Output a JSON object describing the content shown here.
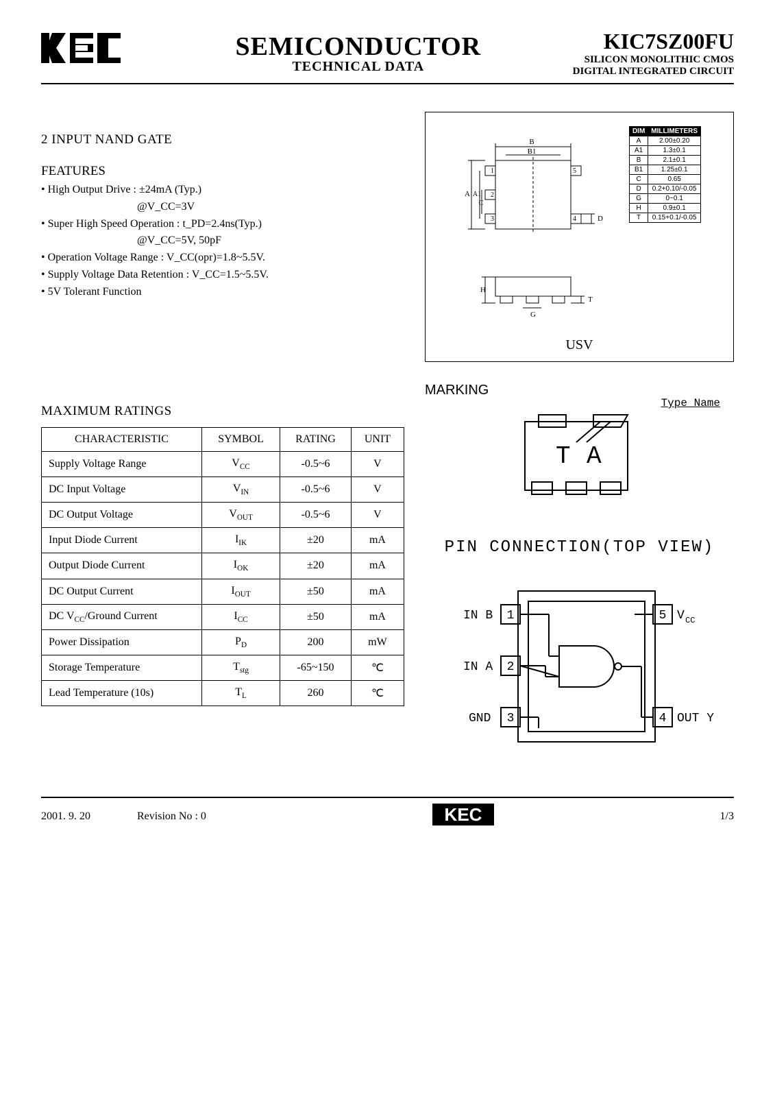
{
  "header": {
    "logo_text": "KEC",
    "mid_main": "SEMICONDUCTOR",
    "mid_sub": "TECHNICAL DATA",
    "part_number": "KIC7SZ00FU",
    "line2": "SILICON MONOLITHIC CMOS",
    "line3": "DIGITAL INTEGRATED CIRCUIT"
  },
  "product_title": "2 INPUT NAND GATE",
  "features_title": "FEATURES",
  "features": [
    "• High Output Drive : ±24mA (Typ.)",
    "@V_CC=3V",
    "• Super High Speed Operation : t_PD=2.4ns(Typ.)",
    "@V_CC=5V, 50pF",
    "• Operation Voltage Range : V_CC(opr)=1.8~5.5V.",
    "• Supply Voltage Data Retention : V_CC=1.5~5.5V.",
    "• 5V Tolerant Function"
  ],
  "max_ratings_title": "MAXIMUM RATINGS",
  "ratings_table": {
    "columns": [
      "CHARACTERISTIC",
      "SYMBOL",
      "RATING",
      "UNIT"
    ],
    "rows": [
      [
        "Supply Voltage Range",
        "V_CC",
        "-0.5~6",
        "V"
      ],
      [
        "DC Input Voltage",
        "V_IN",
        "-0.5~6",
        "V"
      ],
      [
        "DC Output Voltage",
        "V_OUT",
        "-0.5~6",
        "V"
      ],
      [
        "Input Diode Current",
        "I_IK",
        "±20",
        "mA"
      ],
      [
        "Output Diode Current",
        "I_OK",
        "±20",
        "mA"
      ],
      [
        "DC Output Current",
        "I_OUT",
        "±50",
        "mA"
      ],
      [
        "DC V_CC/Ground Current",
        "I_CC",
        "±50",
        "mA"
      ],
      [
        "Power Dissipation",
        "P_D",
        "200",
        "mW"
      ],
      [
        "Storage Temperature",
        "T_stg",
        "-65~150",
        "℃"
      ],
      [
        "Lead Temperature (10s)",
        "T_L",
        "260",
        "℃"
      ]
    ]
  },
  "package": {
    "label": "USV",
    "dim_header": [
      "DIM",
      "MILLIMETERS"
    ],
    "dims": [
      [
        "A",
        "2.00±0.20"
      ],
      [
        "A1",
        "1.3±0.1"
      ],
      [
        "B",
        "2.1±0.1"
      ],
      [
        "B1",
        "1.25±0.1"
      ],
      [
        "C",
        "0.65"
      ],
      [
        "D",
        "0.2+0.10/-0.05"
      ],
      [
        "G",
        "0~0.1"
      ],
      [
        "H",
        "0.9±0.1"
      ],
      [
        "T",
        "0.15+0.1/-0.05"
      ]
    ],
    "drawing": {
      "pin_labels": [
        "1",
        "2",
        "3",
        "4",
        "5"
      ],
      "dim_labels": [
        "A",
        "A1",
        "B",
        "B1",
        "C",
        "D",
        "G",
        "H",
        "T"
      ]
    }
  },
  "marking": {
    "title": "MARKING",
    "typename_label": "Type Name",
    "body_text": "T  A"
  },
  "pin_connection": {
    "title": "PIN CONNECTION(TOP VIEW)",
    "pins": [
      {
        "num": "1",
        "label_left": "IN B",
        "label_right": ""
      },
      {
        "num": "5",
        "label_left": "",
        "label_right": "V_CC"
      },
      {
        "num": "2",
        "label_left": "IN A",
        "label_right": ""
      },
      {
        "num": "3",
        "label_left": "GND",
        "label_right": ""
      },
      {
        "num": "4",
        "label_left": "",
        "label_right": "OUT Y"
      }
    ]
  },
  "footer": {
    "date": "2001. 9. 20",
    "revision": "Revision No : 0",
    "logo": "KEC",
    "page": "1/3"
  },
  "colors": {
    "text": "#000000",
    "bg": "#ffffff",
    "rule": "#000000"
  }
}
